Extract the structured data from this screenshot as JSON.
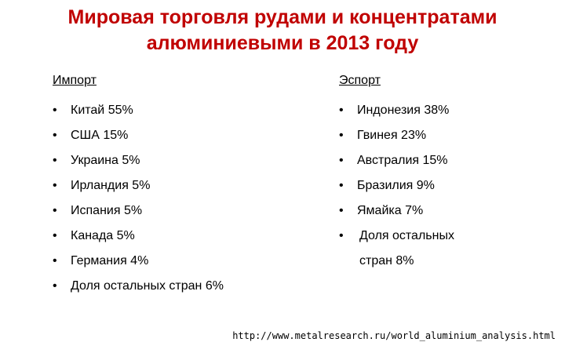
{
  "title": [
    "Мировая торговля рудами и концентратами",
    "алюминиевыми в 2013 году"
  ],
  "columns": [
    {
      "heading": "Импорт",
      "items": [
        "Китай 55%",
        "США 15%",
        "Украина 5%",
        "Ирландия 5%",
        "Испания 5%",
        "Канада 5%",
        "Германия 4%",
        "Доля остальных стран 6%"
      ]
    },
    {
      "heading": "Эспорт",
      "items": [
        "Индонезия 38%",
        "Гвинея 23%",
        "Австралия 15%",
        "Бразилия 9%",
        "Ямайка 7%",
        "Доля остальных стран 8%"
      ]
    }
  ],
  "source": "http://www.metalresearch.ru/world_aluminium_analysis.html"
}
